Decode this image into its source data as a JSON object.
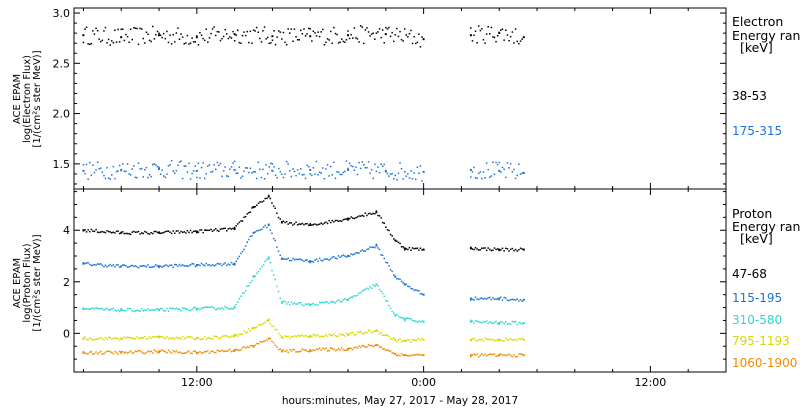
{
  "x_axis_title": "hours:minutes, May 27, 2017 - May 28, 2017",
  "x_tick_labels": [
    "12:00",
    "0:00",
    "12:00"
  ],
  "colors": {
    "38-53": "#000000",
    "175-315": "#1a73d9",
    "47-68": "#000000",
    "115-195": "#1a73d9",
    "310-580": "#2fd6d0",
    "795-1193": "#d8d800",
    "1060-1900": "#f08c00"
  },
  "panels": {
    "electron": {
      "ylabel_lines": [
        "ACE EPAM",
        "log(Electron Flux)",
        "[1/(cm²s ster MeV)]"
      ],
      "y_tick_labels": [
        "3.0",
        "2.5",
        "2.0",
        "1.5"
      ],
      "legend_title_lines": [
        "Electron",
        "Energy ran",
        "[keV]"
      ],
      "legend_items": [
        "38-53",
        "175-315"
      ]
    },
    "proton": {
      "ylabel_lines": [
        "ACE EPAM",
        "log(Proton Flux)",
        "[1/(cm²s ster MeV)]"
      ],
      "y_tick_labels": [
        "4",
        "2",
        "0"
      ],
      "legend_title_lines": [
        "Proton",
        "Energy ran",
        "[keV]"
      ],
      "legend_items": [
        "47-68",
        "115-195",
        "310-580",
        "795-1193",
        "1060-1900"
      ]
    }
  },
  "chart_data": [
    {
      "type": "scatter",
      "title": "",
      "ylabel": "ACE EPAM log(Electron Flux) [1/(cm²s ster MeV)]",
      "xlabel": "hours:minutes, May 27, 2017 - May 28, 2017",
      "x_units": "hours since 0:00 May 27, 2017",
      "xlim": [
        5.5,
        40
      ],
      "ylim": [
        1.25,
        3.05
      ],
      "data_gap_hours": [
        24.0,
        26.2
      ],
      "series": [
        {
          "name": "38-53",
          "x": [
            6,
            8,
            10,
            12,
            14,
            16,
            18,
            20,
            22,
            24,
            26.5,
            28,
            29.3
          ],
          "y": [
            2.78,
            2.76,
            2.78,
            2.76,
            2.79,
            2.77,
            2.77,
            2.78,
            2.79,
            2.74,
            2.78,
            2.8,
            2.76
          ]
        },
        {
          "name": "175-315",
          "x": [
            6,
            8,
            10,
            12,
            14,
            16,
            18,
            20,
            22,
            24,
            26.5,
            28,
            29.3
          ],
          "y": [
            1.43,
            1.44,
            1.45,
            1.43,
            1.44,
            1.43,
            1.44,
            1.44,
            1.43,
            1.42,
            1.44,
            1.43,
            1.41
          ]
        }
      ]
    },
    {
      "type": "scatter",
      "title": "",
      "ylabel": "ACE EPAM log(Proton Flux) [1/(cm²s ster MeV)]",
      "xlabel": "hours:minutes, May 27, 2017 - May 28, 2017",
      "x_units": "hours since 0:00 May 27, 2017",
      "xlim": [
        5.5,
        40
      ],
      "ylim": [
        -1.5,
        5.6
      ],
      "data_gap_hours": [
        24.0,
        26.2
      ],
      "series": [
        {
          "name": "47-68",
          "x": [
            6,
            8,
            10,
            12,
            14,
            15,
            15.8,
            16.5,
            18,
            20,
            21.5,
            22.5,
            23,
            24,
            26.5,
            28,
            29.3
          ],
          "y": [
            4.0,
            3.9,
            3.9,
            3.95,
            4.05,
            4.9,
            5.3,
            4.3,
            4.2,
            4.45,
            4.7,
            3.6,
            3.3,
            3.25,
            3.3,
            3.25,
            3.25
          ]
        },
        {
          "name": "115-195",
          "x": [
            6,
            8,
            10,
            12,
            14,
            15,
            15.8,
            16.5,
            18,
            20,
            21.5,
            22.5,
            23,
            24,
            26.5,
            28,
            29.3
          ],
          "y": [
            2.7,
            2.6,
            2.6,
            2.65,
            2.7,
            3.9,
            4.2,
            2.9,
            2.8,
            3.0,
            3.4,
            2.2,
            1.9,
            1.5,
            1.35,
            1.35,
            1.3
          ]
        },
        {
          "name": "310-580",
          "x": [
            6,
            8,
            10,
            12,
            14,
            15,
            15.8,
            16.5,
            18,
            20,
            21.5,
            22.5,
            23,
            24,
            26.5,
            28,
            29.3
          ],
          "y": [
            0.95,
            0.9,
            0.9,
            0.95,
            1.0,
            2.2,
            2.9,
            1.2,
            1.1,
            1.3,
            1.9,
            0.7,
            0.55,
            0.45,
            0.45,
            0.4,
            0.4
          ]
        },
        {
          "name": "795-1193",
          "x": [
            6,
            8,
            10,
            12,
            14,
            15,
            15.8,
            16.5,
            18,
            20,
            21.5,
            22.5,
            23,
            24,
            26.5,
            28,
            29.3
          ],
          "y": [
            -0.2,
            -0.2,
            -0.15,
            -0.2,
            -0.1,
            0.2,
            0.5,
            -0.15,
            -0.1,
            -0.05,
            0.1,
            -0.25,
            -0.3,
            -0.25,
            -0.25,
            -0.25,
            -0.25
          ]
        },
        {
          "name": "1060-1900",
          "x": [
            6,
            8,
            10,
            12,
            14,
            15,
            15.8,
            16.5,
            18,
            20,
            21.5,
            22.5,
            23,
            24,
            26.5,
            28,
            29.3
          ],
          "y": [
            -0.75,
            -0.75,
            -0.7,
            -0.75,
            -0.65,
            -0.5,
            -0.2,
            -0.7,
            -0.65,
            -0.6,
            -0.45,
            -0.8,
            -0.85,
            -0.85,
            -0.85,
            -0.85,
            -0.85
          ]
        }
      ]
    }
  ]
}
